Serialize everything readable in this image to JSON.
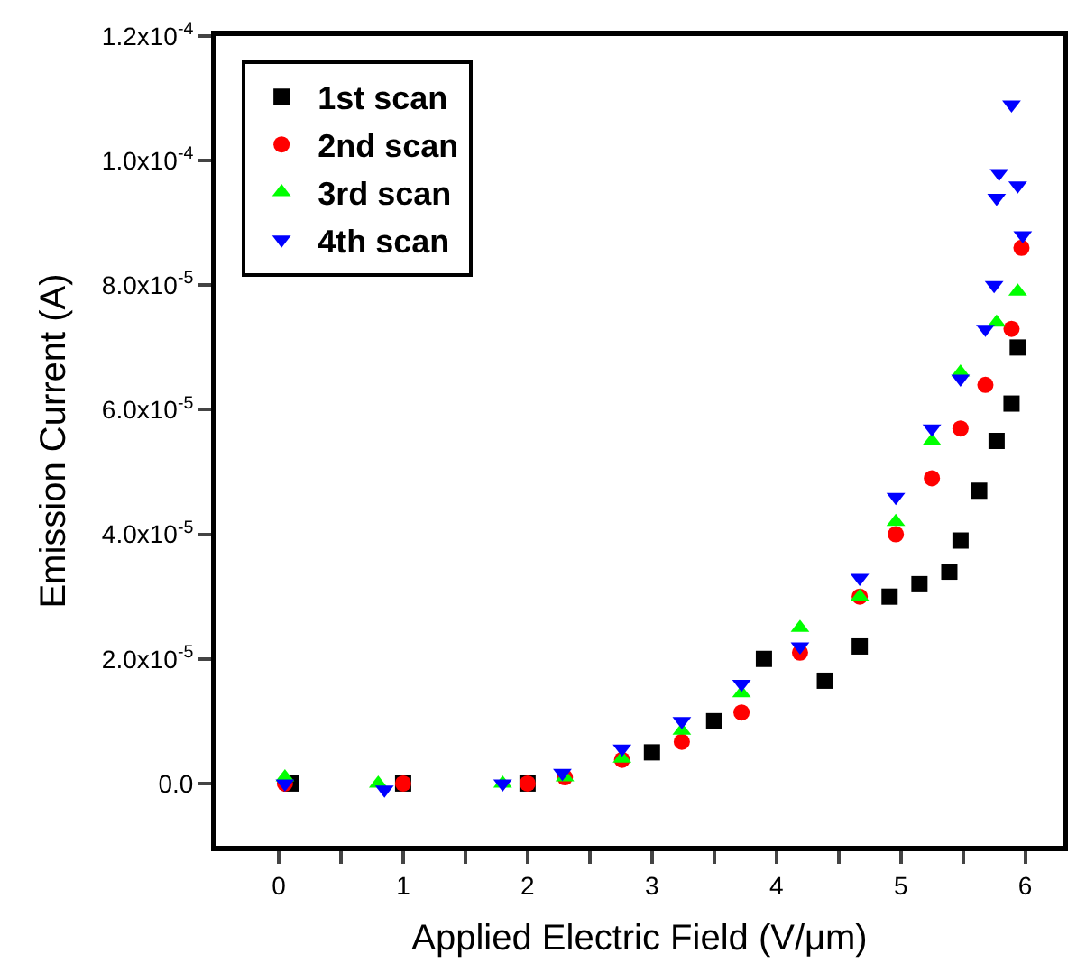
{
  "chart_data": {
    "type": "scatter",
    "xlabel": "Applied Electric Field (V/μm)",
    "ylabel": "Emission Current (A)",
    "xlim": [
      -0.5,
      6.3
    ],
    "ylim": [
      -1e-05,
      0.00012
    ],
    "xticks": [
      0,
      {
        "value": 0.5,
        "label": null
      },
      1,
      {
        "value": 1.5,
        "label": null
      },
      2,
      {
        "value": 2.5,
        "label": null
      },
      3,
      {
        "value": 3.5,
        "label": null
      },
      4,
      {
        "value": 4.5,
        "label": null
      },
      5,
      {
        "value": 5.5,
        "label": null
      },
      6
    ],
    "yticks": [
      {
        "value": 0,
        "label": "0.0"
      },
      {
        "value": 2e-05,
        "label": "2.0x10$^{-5}$"
      },
      {
        "value": 4e-05,
        "label": "4.0x10$^{-5}$"
      },
      {
        "value": 6e-05,
        "label": "6.0x10$^{-5}$"
      },
      {
        "value": 8e-05,
        "label": "8.0x10$^{-5}$"
      },
      {
        "value": 0.0001,
        "label": "1.0x10$^{-4}$"
      },
      {
        "value": 0.00012,
        "label": "1.2x10$^{-4}$"
      }
    ],
    "legend": "top left",
    "series": [
      {
        "name": "1st scan",
        "color": "#000000",
        "marker": "square",
        "x": [
          0.1,
          1.0,
          2.0,
          3.0,
          3.5,
          3.9,
          4.39,
          4.67,
          4.91,
          5.15,
          5.39,
          5.48,
          5.63,
          5.77,
          5.89,
          5.94
        ],
        "values": [
          0,
          0,
          0,
          5e-06,
          1e-05,
          2e-05,
          1.65e-05,
          2.2e-05,
          3e-05,
          3.2e-05,
          3.4e-05,
          3.9e-05,
          4.7e-05,
          5.5e-05,
          6.1e-05,
          7e-05
        ]
      },
      {
        "name": "2nd scan",
        "color": "#ff0000",
        "marker": "circle",
        "x": [
          0.05,
          1.0,
          2.0,
          2.3,
          2.76,
          3.24,
          3.72,
          4.19,
          4.67,
          4.96,
          5.25,
          5.48,
          5.68,
          5.89,
          5.97
        ],
        "values": [
          0,
          0,
          0,
          1e-06,
          3.8e-06,
          6.7e-06,
          1.14e-05,
          2.1e-05,
          3e-05,
          4e-05,
          4.9e-05,
          5.7e-05,
          6.4e-05,
          7.3e-05,
          8.6e-05
        ]
      },
      {
        "name": "3rd scan",
        "color": "#00ff00",
        "marker": "triangle",
        "x": [
          0.05,
          0.8,
          1.8,
          2.3,
          2.76,
          3.24,
          3.72,
          4.19,
          4.67,
          4.96,
          5.25,
          5.48,
          5.77,
          5.94
        ],
        "values": [
          1e-06,
          0,
          0,
          1e-06,
          4e-06,
          8.5e-06,
          1.45e-05,
          2.5e-05,
          3e-05,
          4.2e-05,
          5.5e-05,
          6.6e-05,
          7.4e-05,
          7.9e-05
        ]
      },
      {
        "name": "4th scan",
        "color": "#0000ff",
        "marker": "triangle-down",
        "x": [
          0.05,
          0.85,
          1.8,
          2.28,
          2.76,
          3.24,
          3.72,
          4.19,
          4.67,
          4.96,
          5.25,
          5.48,
          5.68,
          5.75,
          5.77,
          5.79,
          5.89,
          5.94,
          5.98
        ],
        "values": [
          0,
          -1e-06,
          0,
          1.7e-06,
          5.6e-06,
          1e-05,
          1.6e-05,
          2.2e-05,
          3.3e-05,
          4.6e-05,
          5.7e-05,
          6.5e-05,
          7.3e-05,
          8e-05,
          9.4e-05,
          9.8e-05,
          0.000109,
          9.6e-05,
          8.8e-05
        ]
      }
    ]
  }
}
